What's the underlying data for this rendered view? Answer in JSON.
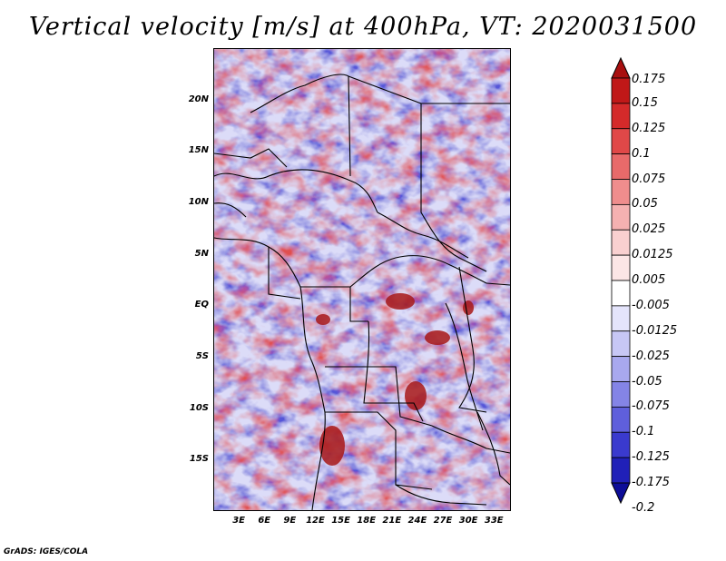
{
  "title": "Vertical velocity [m/s] at 400hPa, VT: 2020031500",
  "footer": "GrADS: IGES/COLA",
  "map": {
    "lon_range": [
      0,
      35
    ],
    "lat_range": [
      -20,
      25
    ],
    "y_ticks": [
      {
        "label": "20N",
        "lat": 20
      },
      {
        "label": "15N",
        "lat": 15
      },
      {
        "label": "10N",
        "lat": 10
      },
      {
        "label": "5N",
        "lat": 5
      },
      {
        "label": "EQ",
        "lat": 0
      },
      {
        "label": "5S",
        "lat": -5
      },
      {
        "label": "10S",
        "lat": -10
      },
      {
        "label": "15S",
        "lat": -15
      }
    ],
    "x_ticks": [
      {
        "label": "3E",
        "lon": 3
      },
      {
        "label": "6E",
        "lon": 6
      },
      {
        "label": "9E",
        "lon": 9
      },
      {
        "label": "12E",
        "lon": 12
      },
      {
        "label": "15E",
        "lon": 15
      },
      {
        "label": "18E",
        "lon": 18
      },
      {
        "label": "21E",
        "lon": 21
      },
      {
        "label": "24E",
        "lon": 24
      },
      {
        "label": "27E",
        "lon": 27
      },
      {
        "label": "30E",
        "lon": 30
      },
      {
        "label": "33E",
        "lon": 33
      }
    ]
  },
  "colorbar": {
    "labels": [
      "0.175",
      "0.15",
      "0.125",
      "0.1",
      "0.075",
      "0.05",
      "0.025",
      "0.0125",
      "0.005",
      "-0.005",
      "-0.0125",
      "-0.025",
      "-0.05",
      "-0.075",
      "-0.1",
      "-0.125",
      "-0.175",
      "-0.2"
    ],
    "colors": [
      "#a80f0f",
      "#c01818",
      "#d42a2a",
      "#e04848",
      "#e86a6a",
      "#ef8d8d",
      "#f5b1b1",
      "#f9d0d0",
      "#fce6e6",
      "#ffffff",
      "#e4e4fb",
      "#c7c7f5",
      "#a8a8ee",
      "#8484e6",
      "#5f5fdc",
      "#3a3ace",
      "#2020b8",
      "#0d0d98"
    ]
  }
}
